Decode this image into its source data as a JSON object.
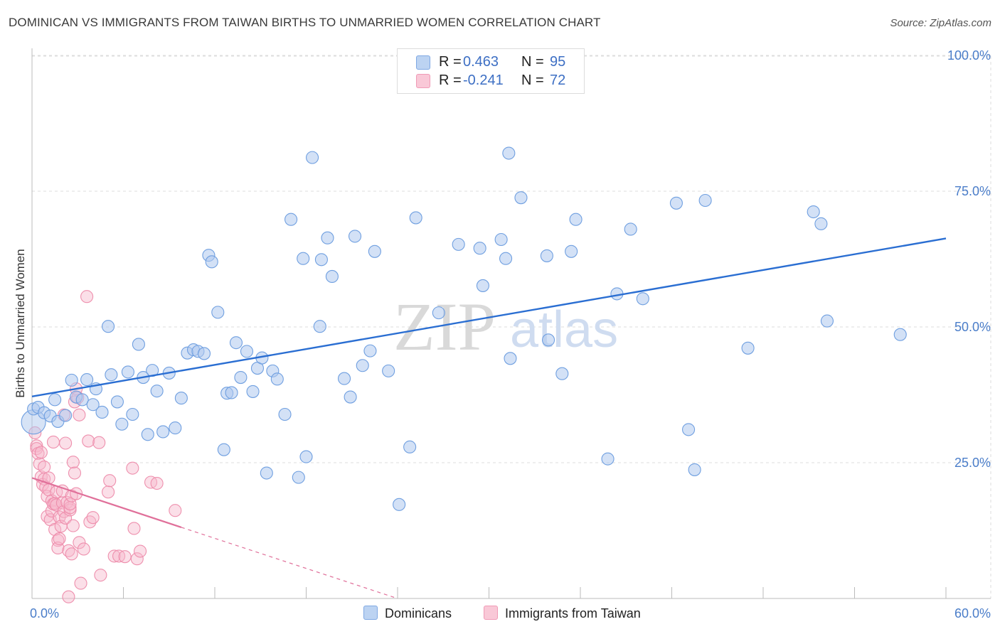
{
  "header": {
    "title": "DOMINICAN VS IMMIGRANTS FROM TAIWAN BIRTHS TO UNMARRIED WOMEN CORRELATION CHART",
    "source": "Source: ZipAtlas.com"
  },
  "legend_box": {
    "rows": [
      {
        "r_label": "R =",
        "r_value": "0.463",
        "n_label": "N =",
        "n_value": "95"
      },
      {
        "r_label": "R =",
        "r_value": "-0.241",
        "n_label": "N =",
        "n_value": "72"
      }
    ]
  },
  "watermark": {
    "zip": "ZIP",
    "atlas": "atlas"
  },
  "colors": {
    "blue_fill": "#aec8ee",
    "blue_stroke": "#6f9fe0",
    "blue_line": "#2a6ed2",
    "pink_fill": "#f6b8cb",
    "pink_stroke": "#ee8fad",
    "pink_line": "#e0709a",
    "tick_text": "#4a7dc9",
    "grid": "#dcdcdc"
  },
  "chart_data": {
    "type": "scatter",
    "title": "DOMINICAN VS IMMIGRANTS FROM TAIWAN BIRTHS TO UNMARRIED WOMEN CORRELATION CHART",
    "xlabel": "",
    "ylabel": "Births to Unmarried Women",
    "xlim": [
      0,
      60
    ],
    "ylim": [
      0,
      100
    ],
    "x_tick_labels": [
      "0.0%",
      "60.0%"
    ],
    "y_ticks": [
      25,
      50,
      75,
      100
    ],
    "y_tick_labels": [
      "25.0%",
      "50.0%",
      "75.0%",
      "100.0%"
    ],
    "grid": true,
    "legend_position": "top-center",
    "series": [
      {
        "name": "Dominicans",
        "r": 0.463,
        "n": 95,
        "trend": {
          "x": [
            0,
            60
          ],
          "y": [
            37.2,
            66.3
          ],
          "dashed_to": null
        },
        "points": [
          [
            0.1,
            34.9
          ],
          [
            0.4,
            35.2
          ],
          [
            0.8,
            34.2
          ],
          [
            1.2,
            33.6
          ],
          [
            1.5,
            36.6
          ],
          [
            1.7,
            32.6
          ],
          [
            2.2,
            33.7
          ],
          [
            2.6,
            40.2
          ],
          [
            2.9,
            37.1
          ],
          [
            3.3,
            36.6
          ],
          [
            3.6,
            40.3
          ],
          [
            4.0,
            35.7
          ],
          [
            4.2,
            38.6
          ],
          [
            4.6,
            34.3
          ],
          [
            5.0,
            50.1
          ],
          [
            5.2,
            41.2
          ],
          [
            5.6,
            36.2
          ],
          [
            5.9,
            32.1
          ],
          [
            6.3,
            41.7
          ],
          [
            6.6,
            33.9
          ],
          [
            7.0,
            46.8
          ],
          [
            7.3,
            40.7
          ],
          [
            7.6,
            30.2
          ],
          [
            7.9,
            42.0
          ],
          [
            8.2,
            38.2
          ],
          [
            8.6,
            30.7
          ],
          [
            9.0,
            41.5
          ],
          [
            9.4,
            31.4
          ],
          [
            9.8,
            36.9
          ],
          [
            10.2,
            45.2
          ],
          [
            10.6,
            45.8
          ],
          [
            10.9,
            45.5
          ],
          [
            11.3,
            45.1
          ],
          [
            11.6,
            63.2
          ],
          [
            11.8,
            62.0
          ],
          [
            12.2,
            52.7
          ],
          [
            12.6,
            27.4
          ],
          [
            12.8,
            37.8
          ],
          [
            13.1,
            37.9
          ],
          [
            13.4,
            47.1
          ],
          [
            13.7,
            40.7
          ],
          [
            14.1,
            45.5
          ],
          [
            14.5,
            38.1
          ],
          [
            14.8,
            42.4
          ],
          [
            15.1,
            44.3
          ],
          [
            15.4,
            23.1
          ],
          [
            15.8,
            41.9
          ],
          [
            16.1,
            40.4
          ],
          [
            16.6,
            33.9
          ],
          [
            17.0,
            69.8
          ],
          [
            17.5,
            22.3
          ],
          [
            17.8,
            62.6
          ],
          [
            18.0,
            26.1
          ],
          [
            18.4,
            81.2
          ],
          [
            18.9,
            50.1
          ],
          [
            19.0,
            62.4
          ],
          [
            19.4,
            66.4
          ],
          [
            19.7,
            59.3
          ],
          [
            20.5,
            40.5
          ],
          [
            20.9,
            37.1
          ],
          [
            21.2,
            66.7
          ],
          [
            21.7,
            42.9
          ],
          [
            22.2,
            45.6
          ],
          [
            22.5,
            63.9
          ],
          [
            23.4,
            41.9
          ],
          [
            24.1,
            17.3
          ],
          [
            24.8,
            27.9
          ],
          [
            25.2,
            70.1
          ],
          [
            26.7,
            52.6
          ],
          [
            28.0,
            65.2
          ],
          [
            29.4,
            64.5
          ],
          [
            29.6,
            57.6
          ],
          [
            30.8,
            66.1
          ],
          [
            31.1,
            62.6
          ],
          [
            31.3,
            82.0
          ],
          [
            31.4,
            44.2
          ],
          [
            32.1,
            73.8
          ],
          [
            33.8,
            63.1
          ],
          [
            33.9,
            47.6
          ],
          [
            34.8,
            41.4
          ],
          [
            35.4,
            63.9
          ],
          [
            35.7,
            69.8
          ],
          [
            37.8,
            25.7
          ],
          [
            38.4,
            56.1
          ],
          [
            39.3,
            68.0
          ],
          [
            40.1,
            55.2
          ],
          [
            42.3,
            72.8
          ],
          [
            43.1,
            31.1
          ],
          [
            43.5,
            23.7
          ],
          [
            44.2,
            73.3
          ],
          [
            47.0,
            46.1
          ],
          [
            51.3,
            71.2
          ],
          [
            51.8,
            69.0
          ],
          [
            52.2,
            51.1
          ],
          [
            57.0,
            48.6
          ]
        ]
      },
      {
        "name": "Immigrants from Taiwan",
        "r": -0.241,
        "n": 72,
        "trend": {
          "x": [
            0,
            9.8
          ],
          "y": [
            22.2,
            13.1
          ],
          "dashed_to": [
            24.0,
            0
          ]
        },
        "points": [
          [
            0.2,
            30.5
          ],
          [
            0.3,
            28.1
          ],
          [
            0.3,
            27.6
          ],
          [
            0.4,
            26.7
          ],
          [
            0.5,
            24.8
          ],
          [
            0.6,
            22.4
          ],
          [
            0.6,
            26.9
          ],
          [
            0.7,
            21.0
          ],
          [
            0.8,
            24.2
          ],
          [
            0.8,
            22.0
          ],
          [
            0.9,
            20.5
          ],
          [
            1.0,
            18.8
          ],
          [
            1.0,
            15.1
          ],
          [
            1.1,
            20.0
          ],
          [
            1.1,
            22.2
          ],
          [
            1.2,
            14.5
          ],
          [
            1.3,
            18.0
          ],
          [
            1.3,
            16.1
          ],
          [
            1.4,
            17.4
          ],
          [
            1.4,
            28.8
          ],
          [
            1.5,
            17.5
          ],
          [
            1.5,
            12.7
          ],
          [
            1.6,
            17.2
          ],
          [
            1.6,
            19.6
          ],
          [
            1.7,
            10.7
          ],
          [
            1.7,
            9.3
          ],
          [
            1.8,
            11.0
          ],
          [
            1.8,
            15.0
          ],
          [
            1.9,
            13.3
          ],
          [
            2.0,
            17.6
          ],
          [
            2.0,
            19.8
          ],
          [
            2.1,
            16.0
          ],
          [
            2.1,
            33.8
          ],
          [
            2.2,
            28.6
          ],
          [
            2.2,
            14.8
          ],
          [
            2.3,
            17.7
          ],
          [
            2.4,
            8.8
          ],
          [
            2.4,
            0.3
          ],
          [
            2.5,
            16.3
          ],
          [
            2.5,
            16.7
          ],
          [
            2.5,
            17.4
          ],
          [
            2.6,
            18.9
          ],
          [
            2.6,
            8.2
          ],
          [
            2.7,
            13.4
          ],
          [
            2.7,
            25.1
          ],
          [
            2.8,
            36.2
          ],
          [
            2.8,
            23.1
          ],
          [
            2.9,
            38.6
          ],
          [
            2.9,
            19.3
          ],
          [
            3.0,
            37.0
          ],
          [
            3.1,
            33.8
          ],
          [
            3.1,
            10.3
          ],
          [
            3.2,
            2.8
          ],
          [
            3.4,
            9.1
          ],
          [
            3.6,
            55.6
          ],
          [
            3.7,
            29.0
          ],
          [
            3.8,
            14.1
          ],
          [
            4.0,
            14.9
          ],
          [
            4.4,
            28.7
          ],
          [
            4.5,
            4.3
          ],
          [
            5.0,
            19.6
          ],
          [
            5.1,
            21.7
          ],
          [
            5.4,
            7.8
          ],
          [
            5.7,
            7.8
          ],
          [
            6.1,
            7.7
          ],
          [
            6.6,
            24.0
          ],
          [
            6.7,
            12.9
          ],
          [
            6.9,
            7.3
          ],
          [
            7.1,
            8.7
          ],
          [
            7.8,
            21.4
          ],
          [
            8.2,
            21.2
          ],
          [
            9.4,
            16.2
          ]
        ]
      }
    ]
  },
  "bottom_legend": [
    {
      "label": "Dominicans"
    },
    {
      "label": "Immigrants from Taiwan"
    }
  ]
}
